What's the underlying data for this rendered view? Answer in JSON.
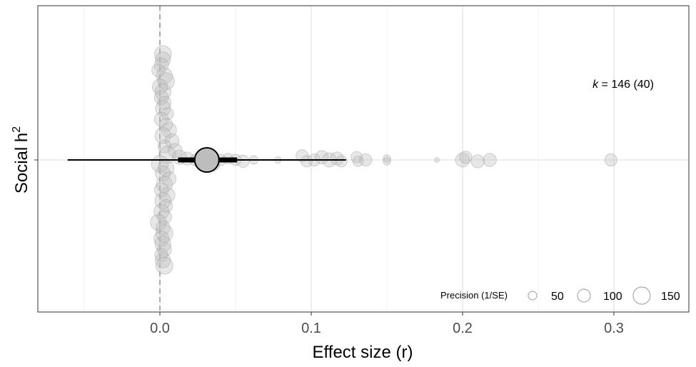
{
  "chart_data": {
    "type": "scatter",
    "subtype": "orchard-plot",
    "title": "",
    "xlabel": "Effect size (r)",
    "ylabel_main": "Social h",
    "ylabel_sup": "2",
    "category": "Social h2",
    "xlim": [
      -0.08,
      0.35
    ],
    "x_ticks": [
      0.0,
      0.1,
      0.2,
      0.3
    ],
    "x_tick_labels": [
      "0.0",
      "0.1",
      "0.2",
      "0.3"
    ],
    "grid": true,
    "reference_line_x": 0,
    "summary": {
      "estimate": 0.031,
      "ci": [
        0.012,
        0.051
      ],
      "pi": [
        -0.061,
        0.123
      ]
    },
    "annotation": {
      "k_label": "k",
      "k_text": " = 146 (40)"
    },
    "legend": {
      "title": "Precision (1/SE)",
      "position": "bottom-right",
      "entries": [
        {
          "label": "50",
          "value": 50
        },
        {
          "label": "100",
          "value": 100
        },
        {
          "label": "150",
          "value": 150
        }
      ]
    },
    "points": [
      {
        "x": 0.002,
        "y": 0.78,
        "p": 150
      },
      {
        "x": 0.002,
        "y": 0.74,
        "p": 130
      },
      {
        "x": 0.001,
        "y": 0.7,
        "p": 120
      },
      {
        "x": -0.001,
        "y": 0.66,
        "p": 110
      },
      {
        "x": 0.003,
        "y": 0.62,
        "p": 140
      },
      {
        "x": 0.004,
        "y": 0.58,
        "p": 150
      },
      {
        "x": 0.0,
        "y": 0.54,
        "p": 130
      },
      {
        "x": 0.002,
        "y": 0.5,
        "p": 140
      },
      {
        "x": 0.001,
        "y": 0.46,
        "p": 120
      },
      {
        "x": 0.003,
        "y": 0.42,
        "p": 110
      },
      {
        "x": 0.002,
        "y": 0.38,
        "p": 130
      },
      {
        "x": 0.005,
        "y": 0.34,
        "p": 100
      },
      {
        "x": 0.001,
        "y": 0.3,
        "p": 120
      },
      {
        "x": 0.004,
        "y": 0.26,
        "p": 110
      },
      {
        "x": 0.006,
        "y": 0.22,
        "p": 130
      },
      {
        "x": 0.002,
        "y": 0.18,
        "p": 140
      },
      {
        "x": 0.008,
        "y": 0.14,
        "p": 120
      },
      {
        "x": 0.003,
        "y": 0.1,
        "p": 110
      },
      {
        "x": 0.01,
        "y": 0.07,
        "p": 120
      },
      {
        "x": 0.005,
        "y": 0.04,
        "p": 150
      },
      {
        "x": 0.013,
        "y": 0.02,
        "p": 120
      },
      {
        "x": 0.018,
        "y": 0.01,
        "p": 110
      },
      {
        "x": 0.024,
        "y": 0.0,
        "p": 100
      },
      {
        "x": 0.03,
        "y": -0.02,
        "p": 110
      },
      {
        "x": 0.035,
        "y": -0.03,
        "p": 120
      },
      {
        "x": 0.04,
        "y": 0.0,
        "p": 90
      },
      {
        "x": 0.045,
        "y": 0.01,
        "p": 80
      },
      {
        "x": 0.05,
        "y": 0.0,
        "p": 90
      },
      {
        "x": 0.055,
        "y": -0.01,
        "p": 100
      },
      {
        "x": 0.062,
        "y": 0.0,
        "p": 60
      },
      {
        "x": 0.078,
        "y": 0.0,
        "p": 40
      },
      {
        "x": 0.094,
        "y": 0.03,
        "p": 100
      },
      {
        "x": 0.097,
        "y": -0.01,
        "p": 90
      },
      {
        "x": 0.102,
        "y": 0.0,
        "p": 100
      },
      {
        "x": 0.107,
        "y": 0.02,
        "p": 110
      },
      {
        "x": 0.112,
        "y": 0.0,
        "p": 120
      },
      {
        "x": 0.117,
        "y": 0.01,
        "p": 110
      },
      {
        "x": 0.12,
        "y": -0.01,
        "p": 90
      },
      {
        "x": 0.13,
        "y": 0.02,
        "p": 90
      },
      {
        "x": 0.131,
        "y": -0.01,
        "p": 80
      },
      {
        "x": 0.136,
        "y": 0.0,
        "p": 100
      },
      {
        "x": 0.15,
        "y": 0.01,
        "p": 50
      },
      {
        "x": 0.15,
        "y": -0.01,
        "p": 50
      },
      {
        "x": 0.183,
        "y": 0.0,
        "p": 20
      },
      {
        "x": 0.2,
        "y": 0.0,
        "p": 120
      },
      {
        "x": 0.202,
        "y": 0.02,
        "p": 100
      },
      {
        "x": 0.21,
        "y": -0.01,
        "p": 110
      },
      {
        "x": 0.218,
        "y": 0.0,
        "p": 110
      },
      {
        "x": 0.298,
        "y": 0.0,
        "p": 100
      },
      {
        "x": 0.0,
        "y": -0.03,
        "p": 150
      },
      {
        "x": 0.004,
        "y": -0.06,
        "p": 140
      },
      {
        "x": 0.002,
        "y": -0.1,
        "p": 130
      },
      {
        "x": 0.006,
        "y": -0.14,
        "p": 120
      },
      {
        "x": 0.003,
        "y": -0.18,
        "p": 140
      },
      {
        "x": 0.001,
        "y": -0.22,
        "p": 120
      },
      {
        "x": 0.005,
        "y": -0.26,
        "p": 130
      },
      {
        "x": 0.002,
        "y": -0.3,
        "p": 140
      },
      {
        "x": 0.004,
        "y": -0.34,
        "p": 110
      },
      {
        "x": 0.001,
        "y": -0.38,
        "p": 130
      },
      {
        "x": 0.003,
        "y": -0.42,
        "p": 120
      },
      {
        "x": -0.001,
        "y": -0.46,
        "p": 140
      },
      {
        "x": 0.002,
        "y": -0.5,
        "p": 120
      },
      {
        "x": 0.003,
        "y": -0.54,
        "p": 150
      },
      {
        "x": 0.001,
        "y": -0.58,
        "p": 130
      },
      {
        "x": 0.002,
        "y": -0.62,
        "p": 140
      },
      {
        "x": 0.003,
        "y": -0.66,
        "p": 120
      },
      {
        "x": 0.001,
        "y": -0.7,
        "p": 110
      },
      {
        "x": 0.002,
        "y": -0.74,
        "p": 130
      },
      {
        "x": 0.003,
        "y": -0.78,
        "p": 150
      }
    ]
  }
}
